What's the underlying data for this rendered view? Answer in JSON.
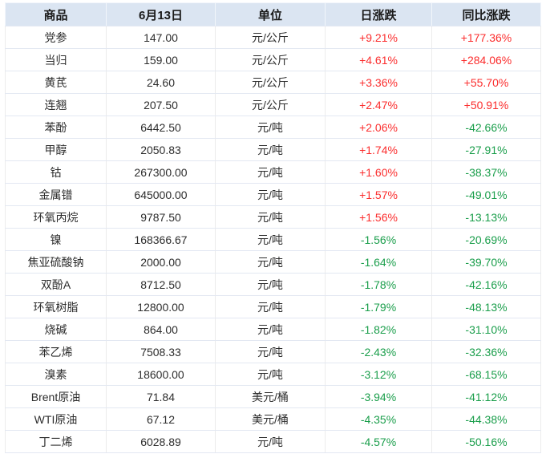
{
  "chart_data": {
    "type": "table",
    "title": "",
    "columns": [
      "商品",
      "6月13日",
      "单位",
      "日涨跌",
      "同比涨跌"
    ],
    "rows": [
      {
        "name": "党参",
        "price": "147.00",
        "unit": "元/公斤",
        "day_change": "+9.21%",
        "yoy_change": "+177.36%"
      },
      {
        "name": "当归",
        "price": "159.00",
        "unit": "元/公斤",
        "day_change": "+4.61%",
        "yoy_change": "+284.06%"
      },
      {
        "name": "黄芪",
        "price": "24.60",
        "unit": "元/公斤",
        "day_change": "+3.36%",
        "yoy_change": "+55.70%"
      },
      {
        "name": "连翘",
        "price": "207.50",
        "unit": "元/公斤",
        "day_change": "+2.47%",
        "yoy_change": "+50.91%"
      },
      {
        "name": "苯酚",
        "price": "6442.50",
        "unit": "元/吨",
        "day_change": "+2.06%",
        "yoy_change": "-42.66%"
      },
      {
        "name": "甲醇",
        "price": "2050.83",
        "unit": "元/吨",
        "day_change": "+1.74%",
        "yoy_change": "-27.91%"
      },
      {
        "name": "钴",
        "price": "267300.00",
        "unit": "元/吨",
        "day_change": "+1.60%",
        "yoy_change": "-38.37%"
      },
      {
        "name": "金属镨",
        "price": "645000.00",
        "unit": "元/吨",
        "day_change": "+1.57%",
        "yoy_change": "-49.01%"
      },
      {
        "name": "环氧丙烷",
        "price": "9787.50",
        "unit": "元/吨",
        "day_change": "+1.56%",
        "yoy_change": "-13.13%"
      },
      {
        "name": "镍",
        "price": "168366.67",
        "unit": "元/吨",
        "day_change": "-1.56%",
        "yoy_change": "-20.69%"
      },
      {
        "name": "焦亚硫酸钠",
        "price": "2000.00",
        "unit": "元/吨",
        "day_change": "-1.64%",
        "yoy_change": "-39.70%"
      },
      {
        "name": "双酚A",
        "price": "8712.50",
        "unit": "元/吨",
        "day_change": "-1.78%",
        "yoy_change": "-42.16%"
      },
      {
        "name": "环氧树脂",
        "price": "12800.00",
        "unit": "元/吨",
        "day_change": "-1.79%",
        "yoy_change": "-48.13%"
      },
      {
        "name": "烧碱",
        "price": "864.00",
        "unit": "元/吨",
        "day_change": "-1.82%",
        "yoy_change": "-31.10%"
      },
      {
        "name": "苯乙烯",
        "price": "7508.33",
        "unit": "元/吨",
        "day_change": "-2.43%",
        "yoy_change": "-32.36%"
      },
      {
        "name": "溴素",
        "price": "18600.00",
        "unit": "元/吨",
        "day_change": "-3.12%",
        "yoy_change": "-68.15%"
      },
      {
        "name": "Brent原油",
        "price": "71.84",
        "unit": "美元/桶",
        "day_change": "-3.94%",
        "yoy_change": "-41.12%"
      },
      {
        "name": "WTI原油",
        "price": "67.12",
        "unit": "美元/桶",
        "day_change": "-4.35%",
        "yoy_change": "-44.38%"
      },
      {
        "name": "丁二烯",
        "price": "6028.89",
        "unit": "元/吨",
        "day_change": "-4.57%",
        "yoy_change": "-50.16%"
      }
    ],
    "layout_hints": {
      "header_position": "top",
      "grid": true,
      "value_alignment": "center"
    }
  },
  "colors": {
    "positive": "#fb2d2d",
    "negative": "#1a9e4b",
    "header_bg": "#dbe5f2",
    "border": "#e3e8f2",
    "text": "#2d2d2d"
  }
}
